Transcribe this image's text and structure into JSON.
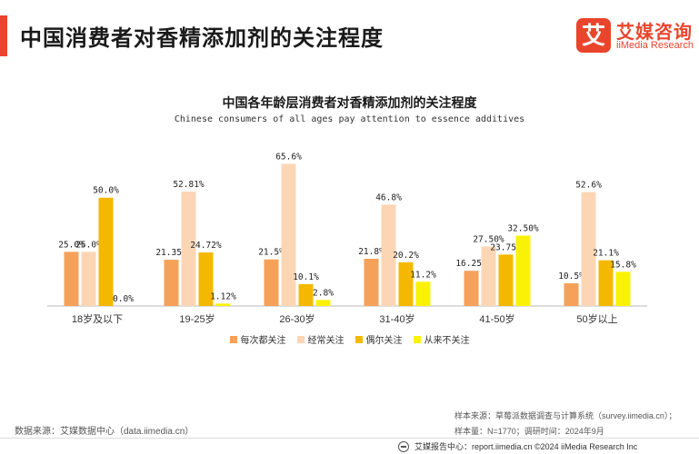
{
  "header": {
    "title": "中国消费者对香精添加剂的关注程度"
  },
  "logo": {
    "mark": "艾",
    "cn": "艾媒咨询",
    "en": "iiMedia Research"
  },
  "chart_data": {
    "type": "bar",
    "title": "中国各年龄层消费者对香精添加剂的关注程度",
    "subtitle": "Chinese consumers of all ages pay attention to essence additives",
    "categories": [
      "18岁及以下",
      "19-25岁",
      "26-30岁",
      "31-40岁",
      "41-50岁",
      "50岁以上"
    ],
    "series": [
      {
        "name": "每次都关注",
        "color": "#f5a15a",
        "values": [
          25.0,
          21.35,
          21.5,
          21.8,
          16.25,
          10.5
        ],
        "labels": [
          "25.0%",
          "21.35%",
          "21.5%",
          "21.8%",
          "16.25%",
          "10.5%"
        ]
      },
      {
        "name": "经常关注",
        "color": "#fcd6b4",
        "values": [
          25.0,
          52.81,
          65.6,
          46.8,
          27.5,
          52.6
        ],
        "labels": [
          "25.0%",
          "52.81%",
          "65.6%",
          "46.8%",
          "27.50%",
          "52.6%"
        ]
      },
      {
        "name": "偶尔关注",
        "color": "#f5b800",
        "values": [
          50.0,
          24.72,
          10.1,
          20.2,
          23.75,
          21.1
        ],
        "labels": [
          "50.0%",
          "24.72%",
          "10.1%",
          "20.2%",
          "23.75%",
          "21.1%"
        ]
      },
      {
        "name": "从来不关注",
        "color": "#f9f207",
        "values": [
          0.0,
          1.12,
          2.8,
          11.2,
          32.5,
          15.8
        ],
        "labels": [
          "0.0%",
          "1.12%",
          "2.8%",
          "11.2%",
          "32.50%",
          "15.8%"
        ]
      }
    ],
    "ylim": [
      0,
      70
    ],
    "grid": false,
    "legend": "bottom-center"
  },
  "source": {
    "left": "数据来源：艾媒数据中心（data.iimedia.cn）",
    "right_line1": "样本来源：草莓派数据调查与计算系统（survey.iimedia.cn）；",
    "right_line2": "样本量：N=1770；调研时间：2024年9月"
  },
  "footer": {
    "text": "艾媒报告中心：report.iimedia.cn    ©2024    iiMedia Research  Inc"
  }
}
